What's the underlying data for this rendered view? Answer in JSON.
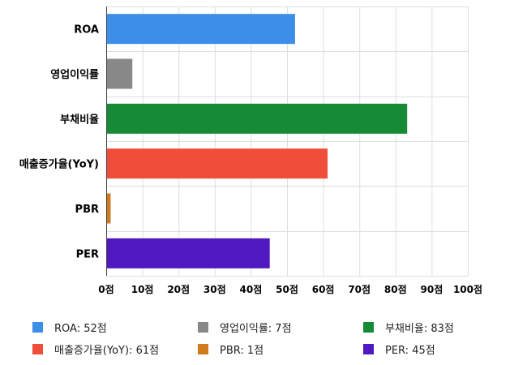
{
  "chart_data": {
    "type": "bar",
    "orientation": "horizontal",
    "categories": [
      "ROA",
      "영업이익률",
      "부채비율",
      "매출증가율(YoY)",
      "PBR",
      "PER"
    ],
    "values": [
      52,
      7,
      83,
      61,
      1,
      45
    ],
    "colors": [
      "#3c8ee8",
      "#888888",
      "#178a37",
      "#ef4f3a",
      "#d17a1c",
      "#5018c0"
    ],
    "xlim": [
      0,
      100
    ],
    "x_ticks": [
      0,
      10,
      20,
      30,
      40,
      50,
      60,
      70,
      80,
      90,
      100
    ],
    "x_tick_labels": [
      "0점",
      "10점",
      "20점",
      "30점",
      "40점",
      "50점",
      "60점",
      "70점",
      "80점",
      "90점",
      "100점"
    ],
    "grid": true,
    "legend_position": "bottom",
    "legend": [
      {
        "label": "ROA: 52점",
        "color": "#3c8ee8"
      },
      {
        "label": "영업이익률: 7점",
        "color": "#888888"
      },
      {
        "label": "부채비율: 83점",
        "color": "#178a37"
      },
      {
        "label": "매출증가율(YoY): 61점",
        "color": "#ef4f3a"
      },
      {
        "label": "PBR: 1점",
        "color": "#d17a1c"
      },
      {
        "label": "PER: 45점",
        "color": "#5018c0"
      }
    ]
  }
}
